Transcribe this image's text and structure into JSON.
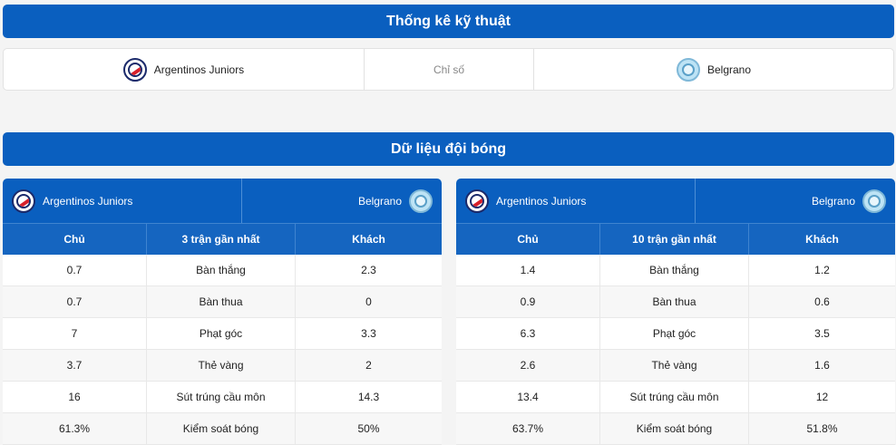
{
  "tech_title": "Thống kê kỹ thuật",
  "team_title": "Dữ liệu đội bóng",
  "summary": {
    "home": "Argentinos Juniors",
    "middle": "Chỉ số",
    "away": "Belgrano"
  },
  "left_panel": {
    "home": "Argentinos Juniors",
    "away": "Belgrano",
    "col_home": "Chủ",
    "col_mid": "3 trận gần nhất",
    "col_away": "Khách",
    "rows": [
      {
        "home": "0.7",
        "label": "Bàn thắng",
        "away": "2.3"
      },
      {
        "home": "0.7",
        "label": "Bàn thua",
        "away": "0"
      },
      {
        "home": "7",
        "label": "Phạt góc",
        "away": "3.3"
      },
      {
        "home": "3.7",
        "label": "Thẻ vàng",
        "away": "2"
      },
      {
        "home": "16",
        "label": "Sút trúng cầu môn",
        "away": "14.3"
      },
      {
        "home": "61.3%",
        "label": "Kiểm soát bóng",
        "away": "50%"
      }
    ]
  },
  "right_panel": {
    "home": "Argentinos Juniors",
    "away": "Belgrano",
    "col_home": "Chủ",
    "col_mid": "10 trận gần nhất",
    "col_away": "Khách",
    "rows": [
      {
        "home": "1.4",
        "label": "Bàn thắng",
        "away": "1.2"
      },
      {
        "home": "0.9",
        "label": "Bàn thua",
        "away": "0.6"
      },
      {
        "home": "6.3",
        "label": "Phạt góc",
        "away": "3.5"
      },
      {
        "home": "2.6",
        "label": "Thẻ vàng",
        "away": "1.6"
      },
      {
        "home": "13.4",
        "label": "Sút trúng cầu môn",
        "away": "12"
      },
      {
        "home": "63.7%",
        "label": "Kiểm soát bóng",
        "away": "51.8%"
      }
    ]
  },
  "icons": {
    "home_logo": "argentinos-juniors-logo-icon",
    "away_logo": "belgrano-logo-icon"
  },
  "colors": {
    "primary": "#0a5fbf",
    "header_row": "#1565c0"
  }
}
